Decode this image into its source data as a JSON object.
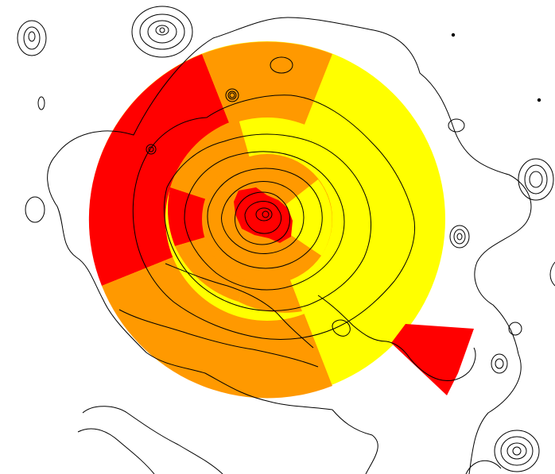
{
  "figure": {
    "background": "#ffffff",
    "contour_color": "#000000",
    "sector_colors": {
      "red": "#ff0000",
      "orange": "#ff9900",
      "yellow": "#ffff00"
    },
    "legend": "none",
    "axes": "none"
  }
}
